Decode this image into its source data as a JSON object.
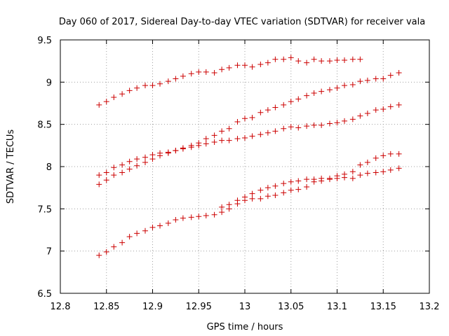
{
  "chart_data": {
    "type": "scatter",
    "title": "Day 060 of 2017, Sidereal Day-to-day VTEC variation (SDTVAR) for receiver vala",
    "xlabel": "GPS time / hours",
    "ylabel": "SDTVAR / TECUs",
    "xlim": [
      12.8,
      13.2
    ],
    "ylim": [
      6.5,
      9.5
    ],
    "xticks": [
      "12.8",
      "12.85",
      "12.9",
      "12.95",
      "13",
      "13.05",
      "13.1",
      "13.15",
      "13.2"
    ],
    "yticks": [
      "6.5",
      "7",
      "7.5",
      "8",
      "8.5",
      "9",
      "9.5"
    ],
    "grid": true,
    "marker": "+",
    "series_color": "#cc0000",
    "series": [
      {
        "name": "series-1",
        "x": [
          12.842,
          12.85,
          12.858,
          12.867,
          12.875,
          12.883,
          12.892,
          12.9,
          12.908,
          12.917,
          12.925,
          12.933,
          12.942,
          12.95,
          12.958,
          12.967,
          12.975,
          12.983,
          12.992,
          13.0,
          13.008,
          13.017,
          13.025,
          13.033,
          13.042,
          13.05,
          13.058,
          13.067,
          13.075,
          13.083,
          13.092,
          13.1,
          13.108,
          13.117,
          13.125
        ],
        "y": [
          8.73,
          8.77,
          8.82,
          8.86,
          8.9,
          8.93,
          8.96,
          8.96,
          8.98,
          9.01,
          9.04,
          9.07,
          9.1,
          9.12,
          9.12,
          9.11,
          9.15,
          9.17,
          9.2,
          9.2,
          9.18,
          9.21,
          9.23,
          9.27,
          9.27,
          9.29,
          9.25,
          9.23,
          9.27,
          9.25,
          9.25,
          9.26,
          9.26,
          9.27,
          9.27
        ]
      },
      {
        "name": "series-2",
        "x": [
          12.842,
          12.85,
          12.858,
          12.867,
          12.875,
          12.883,
          12.892,
          12.9,
          12.908,
          12.917,
          12.925,
          12.933,
          12.942,
          12.95,
          12.958,
          12.967,
          12.975,
          12.983,
          12.992,
          13.0,
          13.008,
          13.017,
          13.025,
          13.033,
          13.042,
          13.05,
          13.058,
          13.067,
          13.075,
          13.083,
          13.092,
          13.1,
          13.108,
          13.117,
          13.125,
          13.133,
          13.142,
          13.15,
          13.158,
          13.167
        ],
        "y": [
          7.9,
          7.93,
          7.99,
          8.02,
          8.06,
          8.09,
          8.11,
          8.14,
          8.16,
          8.17,
          8.19,
          8.22,
          8.25,
          8.28,
          8.33,
          8.37,
          8.42,
          8.45,
          8.53,
          8.57,
          8.58,
          8.64,
          8.67,
          8.7,
          8.73,
          8.77,
          8.8,
          8.84,
          8.87,
          8.89,
          8.91,
          8.93,
          8.96,
          8.97,
          9.01,
          9.02,
          9.04,
          9.04,
          9.08,
          9.11
        ]
      },
      {
        "name": "series-3",
        "x": [
          12.842,
          12.85,
          12.858,
          12.867,
          12.875,
          12.883,
          12.892,
          12.9,
          12.908,
          12.917,
          12.925,
          12.933,
          12.942,
          12.95,
          12.958,
          12.967,
          12.975,
          12.983,
          12.992,
          13.0,
          13.008,
          13.017,
          13.025,
          13.033,
          13.042,
          13.05,
          13.058,
          13.067,
          13.075,
          13.083,
          13.092,
          13.1,
          13.108,
          13.117,
          13.125,
          13.133,
          13.142,
          13.15,
          13.158,
          13.167
        ],
        "y": [
          7.79,
          7.84,
          7.9,
          7.93,
          7.97,
          8.01,
          8.05,
          8.09,
          8.13,
          8.16,
          8.19,
          8.21,
          8.23,
          8.25,
          8.27,
          8.29,
          8.31,
          8.31,
          8.33,
          8.34,
          8.36,
          8.38,
          8.4,
          8.42,
          8.45,
          8.47,
          8.46,
          8.48,
          8.49,
          8.49,
          8.51,
          8.52,
          8.54,
          8.56,
          8.6,
          8.63,
          8.67,
          8.68,
          8.71,
          8.73
        ]
      },
      {
        "name": "series-4",
        "x": [
          12.842,
          12.85,
          12.858,
          12.867,
          12.875,
          12.883,
          12.892,
          12.9,
          12.908,
          12.917,
          12.925,
          12.933,
          12.942,
          12.95,
          12.958,
          12.967,
          12.975,
          12.983,
          12.992,
          13.0,
          13.008,
          13.017,
          13.025,
          13.033,
          13.042,
          13.05,
          13.058,
          13.067,
          13.075,
          13.083,
          13.092,
          13.1,
          13.108,
          13.117,
          13.125,
          13.133,
          13.142,
          13.15,
          13.158,
          13.167
        ],
        "y": [
          6.95,
          6.99,
          7.05,
          7.1,
          7.17,
          7.21,
          7.24,
          7.28,
          7.3,
          7.33,
          7.37,
          7.39,
          7.4,
          7.41,
          7.42,
          7.43,
          7.46,
          7.5,
          7.56,
          7.6,
          7.62,
          7.62,
          7.65,
          7.66,
          7.69,
          7.72,
          7.73,
          7.76,
          7.82,
          7.83,
          7.85,
          7.86,
          7.87,
          7.86,
          7.9,
          7.92,
          7.93,
          7.94,
          7.96,
          7.98
        ]
      },
      {
        "name": "series-5",
        "x": [
          12.975,
          12.983,
          12.992,
          13.0,
          13.008,
          13.017,
          13.025,
          13.033,
          13.042,
          13.05,
          13.058,
          13.067,
          13.075,
          13.083,
          13.092,
          13.1,
          13.108,
          13.117,
          13.125,
          13.133,
          13.142,
          13.15,
          13.158,
          13.167
        ],
        "y": [
          7.52,
          7.55,
          7.6,
          7.64,
          7.68,
          7.72,
          7.75,
          7.77,
          7.8,
          7.82,
          7.83,
          7.85,
          7.85,
          7.86,
          7.86,
          7.89,
          7.91,
          7.94,
          8.02,
          8.05,
          8.1,
          8.13,
          8.15,
          8.15
        ]
      }
    ]
  }
}
